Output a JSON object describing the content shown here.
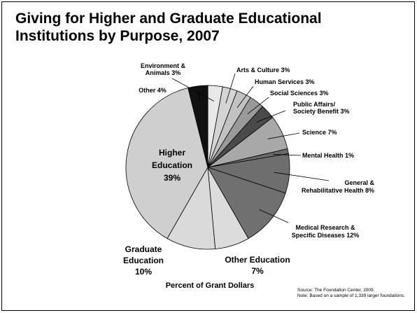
{
  "chart_data": {
    "type": "pie",
    "title": "Giving for Higher and Graduate Educational Institutions by Purpose, 2007",
    "caption": "Percent of Grant Dollars",
    "source_line_1": "Source: The Foundation Center, 2009.",
    "source_line_2": "Note: Based on a sample of 1,339 larger foundations.",
    "slices": [
      {
        "lines": [
          "Environment &",
          "Animals 3%"
        ],
        "value": 3,
        "color": "#e8e8e8"
      },
      {
        "lines": [
          "Arts & Culture 3%"
        ],
        "value": 3,
        "color": "#d4d4d4"
      },
      {
        "lines": [
          "Human Services 3%"
        ],
        "value": 3,
        "color": "#c2c2c2"
      },
      {
        "lines": [
          "Social Sciences 3%"
        ],
        "value": 3,
        "color": "#9a9a9a"
      },
      {
        "lines": [
          "Public Affairs/",
          "Society Benefit 3%"
        ],
        "value": 3,
        "color": "#4a4a4a"
      },
      {
        "lines": [
          "Science 7%"
        ],
        "value": 7,
        "color": "#a8a8a8"
      },
      {
        "lines": [
          "Mental Health 1%"
        ],
        "value": 1,
        "color": "#6a6a6a"
      },
      {
        "lines": [
          "General &",
          "Rehabilitative Health 8%"
        ],
        "value": 8,
        "color": "#6e6e6e"
      },
      {
        "lines": [
          "Medical Research &",
          "Specific Diseases 12%"
        ],
        "value": 12,
        "color": "#707070"
      },
      {
        "lines": [
          "Other Education",
          "7%"
        ],
        "value": 7,
        "color": "#dcdcdc"
      },
      {
        "lines": [
          "Graduate",
          "Education",
          "10%"
        ],
        "value": 10,
        "color": "#dadada"
      },
      {
        "lines": [
          "Higher",
          "Education",
          "39%"
        ],
        "value": 39,
        "color": "#cfcfcf"
      },
      {
        "lines": [
          "Other 4%"
        ],
        "value": 4,
        "color": "#111111"
      }
    ]
  }
}
